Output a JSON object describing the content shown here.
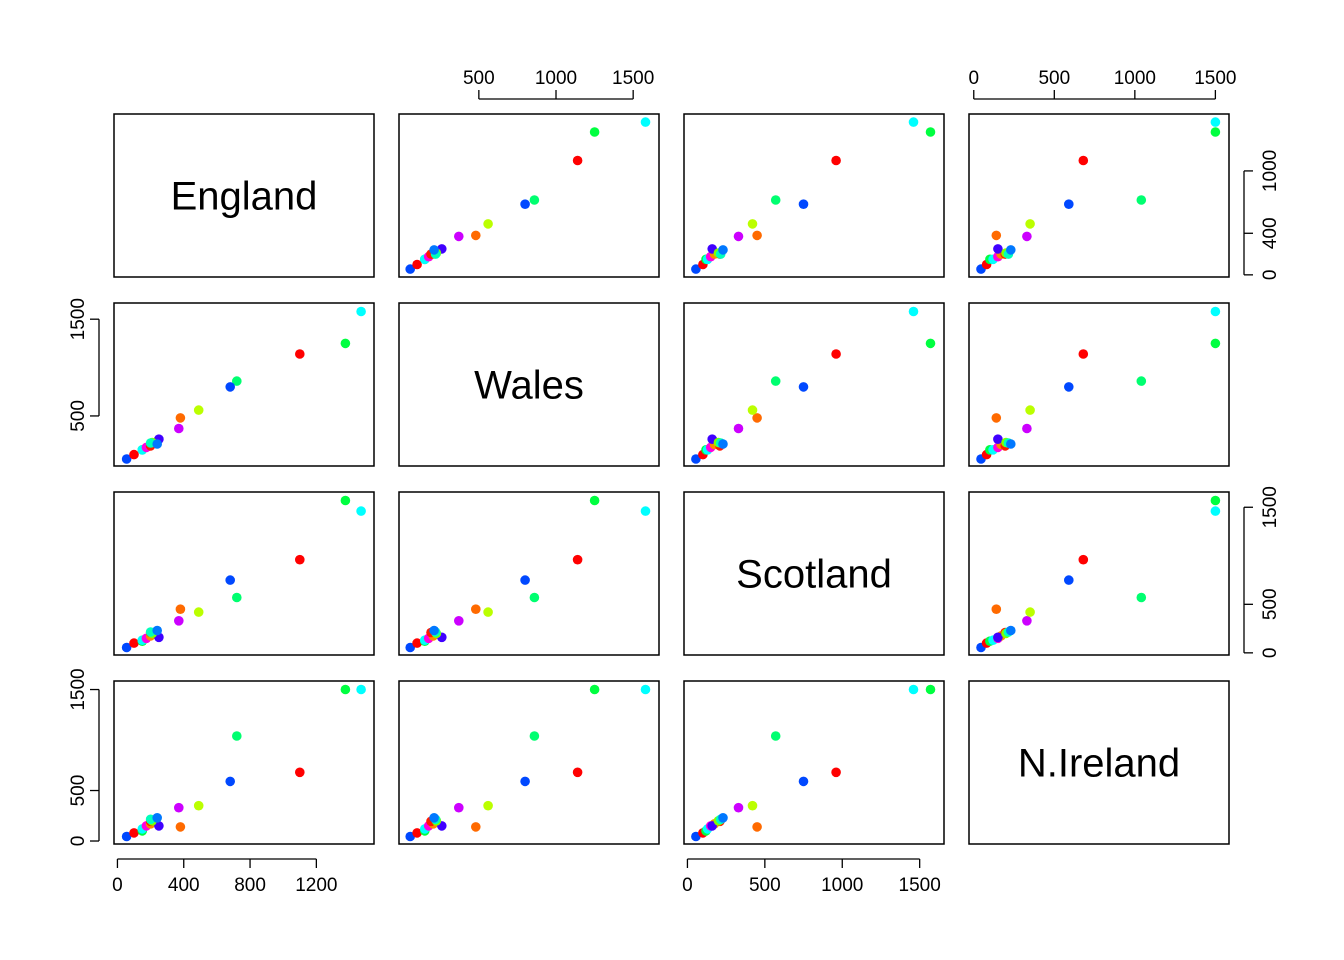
{
  "chart_data": {
    "type": "scatter",
    "matrix": "pairs",
    "variables": [
      "England",
      "Wales",
      "Scotland",
      "N.Ireland"
    ],
    "point_colors": [
      "#0048FF",
      "#FF0000",
      "#00FF40",
      "#00FFFF",
      "#FF00E0",
      "#FF8800",
      "#FF1A00",
      "#4000FF",
      "#80FF00",
      "#00FFBB",
      "#0078FF",
      "#CC00FF",
      "#FF6A00",
      "#BBFF00",
      "#00FF70"
    ],
    "observations": [
      {
        "England": 55,
        "Wales": 55,
        "Scotland": 55,
        "N.Ireland": 45
      },
      {
        "England": 100,
        "Wales": 100,
        "Scotland": 100,
        "N.Ireland": 80
      },
      {
        "England": 150,
        "Wales": 150,
        "Scotland": 120,
        "N.Ireland": 100
      },
      {
        "England": 150,
        "Wales": 150,
        "Scotland": 130,
        "N.Ireland": 120
      },
      {
        "England": 175,
        "Wales": 175,
        "Scotland": 150,
        "N.Ireland": 150
      },
      {
        "England": 200,
        "Wales": 205,
        "Scotland": 175,
        "N.Ireland": 170
      },
      {
        "England": 200,
        "Wales": 190,
        "Scotland": 210,
        "N.Ireland": 195
      },
      {
        "England": 250,
        "Wales": 260,
        "Scotland": 160,
        "N.Ireland": 150
      },
      {
        "England": 210,
        "Wales": 225,
        "Scotland": 200,
        "N.Ireland": 200
      },
      {
        "England": 200,
        "Wales": 220,
        "Scotland": 215,
        "N.Ireland": 215
      },
      {
        "England": 240,
        "Wales": 210,
        "Scotland": 230,
        "N.Ireland": 230
      },
      {
        "England": 370,
        "Wales": 370,
        "Scotland": 330,
        "N.Ireland": 330
      },
      {
        "England": 380,
        "Wales": 480,
        "Scotland": 450,
        "N.Ireland": 140
      },
      {
        "England": 490,
        "Wales": 560,
        "Scotland": 420,
        "N.Ireland": 350
      },
      {
        "England": 720,
        "Wales": 860,
        "Scotland": 570,
        "N.Ireland": 1040
      },
      {
        "England": 680,
        "Wales": 800,
        "Scotland": 750,
        "N.Ireland": 590
      },
      {
        "England": 1100,
        "Wales": 1140,
        "Scotland": 960,
        "N.Ireland": 680
      },
      {
        "England": 1375,
        "Wales": 1250,
        "Scotland": 1570,
        "N.Ireland": 1500
      },
      {
        "England": 1470,
        "Wales": 1580,
        "Scotland": 1460,
        "N.Ireland": 1500
      }
    ],
    "ranges": {
      "England": [
        42,
        1485
      ],
      "Wales": [
        50,
        1600
      ],
      "Scotland": [
        45,
        1590
      ],
      "N.Ireland": [
        35,
        1520
      ]
    },
    "axes": {
      "top": {
        "1": {
          "var": "Wales",
          "ticks": [
            500,
            1000,
            1500
          ]
        },
        "3": {
          "var": "N.Ireland",
          "ticks": [
            0,
            500,
            1000,
            1500
          ]
        }
      },
      "bottom": {
        "0": {
          "var": "England",
          "ticks": [
            0,
            400,
            800,
            1200
          ]
        },
        "2": {
          "var": "Scotland",
          "ticks": [
            0,
            500,
            1000,
            1500
          ]
        }
      },
      "left": {
        "1": {
          "var": "Wales",
          "ticks": [
            500,
            1500
          ]
        },
        "3": {
          "var": "N.Ireland",
          "ticks": [
            0,
            500,
            1500
          ]
        }
      },
      "right": {
        "0": {
          "var": "England",
          "ticks": [
            0,
            400,
            1000
          ]
        },
        "2": {
          "var": "Scotland",
          "ticks": [
            0,
            500,
            1500
          ]
        }
      }
    },
    "grid": false,
    "legend": "none"
  }
}
